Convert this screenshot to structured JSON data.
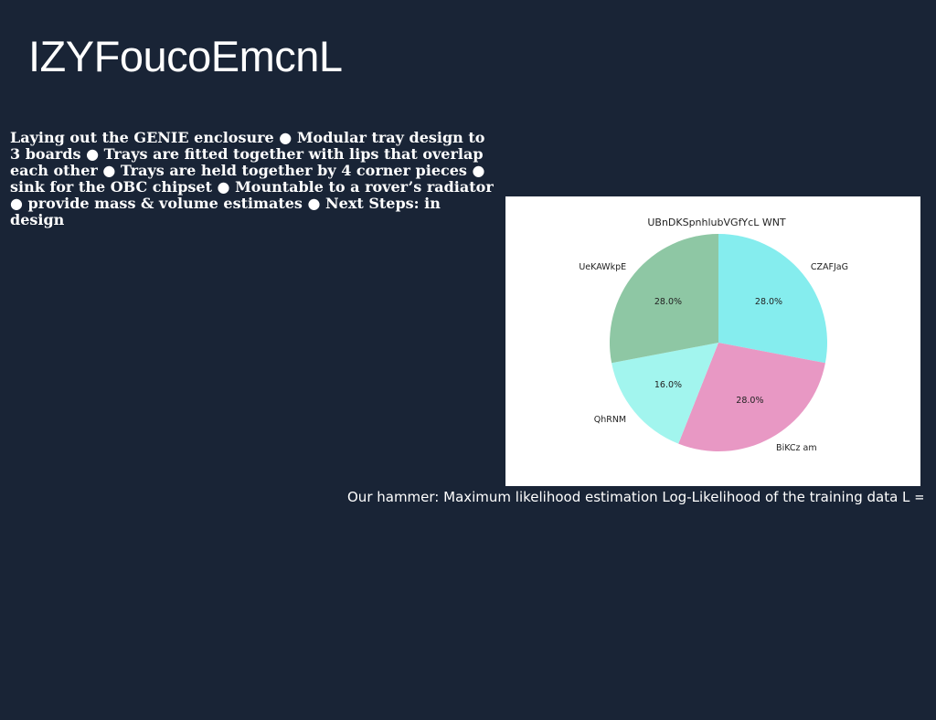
{
  "slide": {
    "title": "IZYFoucoEmcnL",
    "body": "Laying out the GENIE enclosure ● Modular tray design to 3 boards ● Trays are fitted together with lips that overlap each other ● Trays are held together by 4 corner pieces ● sink for the OBC chipset ● Mountable to a rover’s radiator ● provide mass & volume estimates ● Next Steps: in design",
    "caption": "Our hammer: Maximum likelihood estimation Log-Likelihood of the training data L = log"
  },
  "chart_data": {
    "type": "pie",
    "title": "UBnDKSpnhlubVGfYcL WNT",
    "start_angle": "top (12 o'clock), clockwise",
    "legend": "none",
    "slices": [
      {
        "label": "CZAFJaG",
        "value": 28.0,
        "pct_label": "28.0%",
        "color": "#85edee"
      },
      {
        "label": "BiKCz am",
        "value": 28.0,
        "pct_label": "28.0%",
        "color": "#e898c4"
      },
      {
        "label": "QhRNM",
        "value": 16.0,
        "pct_label": "16.0%",
        "color": "#a2f5ee"
      },
      {
        "label": "UeKAWkpE",
        "value": 28.0,
        "pct_label": "28.0%",
        "color": "#8ec7a4"
      }
    ]
  }
}
